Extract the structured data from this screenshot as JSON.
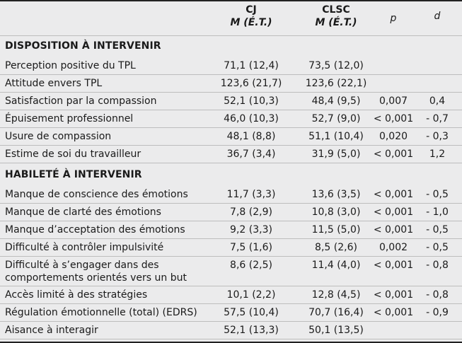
{
  "headers": {
    "cj": "CJ",
    "cj_sub": "M (É.T.)",
    "clsc": "CLSC",
    "clsc_sub": "M (É.T.)",
    "p": "p",
    "d": "d"
  },
  "sections": [
    {
      "title": "DISPOSITION À INTERVENIR",
      "rows": [
        {
          "label": "Perception positive du TPL",
          "cj": "71,1 (12,4)",
          "clsc": "73,5 (12,0)",
          "p": "",
          "d": ""
        },
        {
          "label": "Attitude envers TPL",
          "cj": "123,6 (21,7)",
          "clsc": "123,6 (22,1)",
          "p": "",
          "d": ""
        },
        {
          "label": "Satisfaction par la compassion",
          "cj": "52,1 (10,3)",
          "clsc": "48,4 (9,5)",
          "p": "0,007",
          "d": "0,4"
        },
        {
          "label": "Épuisement professionnel",
          "cj": "46,0 (10,3)",
          "clsc": "52,7 (9,0)",
          "p": "< 0,001",
          "d": "- 0,7"
        },
        {
          "label": "Usure de compassion",
          "cj": "48,1 (8,8)",
          "clsc": "51,1 (10,4)",
          "p": "0,020",
          "d": "- 0,3"
        },
        {
          "label": "Estime de soi du travailleur",
          "cj": "36,7 (3,4)",
          "clsc": "31,9 (5,0)",
          "p": "< 0,001",
          "d": "1,2"
        }
      ]
    },
    {
      "title": "HABILETÉ À INTERVENIR",
      "rows": [
        {
          "label": "Manque de conscience des émotions",
          "cj": "11,7 (3,3)",
          "clsc": "13,6 (3,5)",
          "p": "< 0,001",
          "d": "- 0,5"
        },
        {
          "label": "Manque de clarté des émotions",
          "cj": "7,8 (2,9)",
          "clsc": "10,8 (3,0)",
          "p": "< 0,001",
          "d": "- 1,0"
        },
        {
          "label": "Manque d’acceptation des émotions",
          "cj": "9,2 (3,3)",
          "clsc": "11,5 (5,0)",
          "p": "< 0,001",
          "d": "- 0,5"
        },
        {
          "label": "Difficulté à contrôler impulsivité",
          "cj": "7,5 (1,6)",
          "clsc": "8,5 (2,6)",
          "p": "0,002",
          "d": "- 0,5"
        },
        {
          "label": "Difficulté à s’engager dans des",
          "label2": "comportements orientés vers un but",
          "cj": "8,6 (2,5)",
          "clsc": "11,4 (4,0)",
          "p": "< 0,001",
          "d": "- 0,8"
        },
        {
          "label": "Accès limité à des stratégies",
          "cj": "10,1 (2,2)",
          "clsc": "12,8 (4,5)",
          "p": "< 0,001",
          "d": "- 0,8"
        },
        {
          "label": "Régulation émotionnelle (total) (EDRS)",
          "cj": "57,5 (10,4)",
          "clsc": "70,7 (16,4)",
          "p": "< 0,001",
          "d": "- 0,9"
        },
        {
          "label": "Aisance à interagir",
          "cj": "52,1 (13,3)",
          "clsc": "50,1 (13,5)",
          "p": "",
          "d": ""
        }
      ]
    }
  ]
}
